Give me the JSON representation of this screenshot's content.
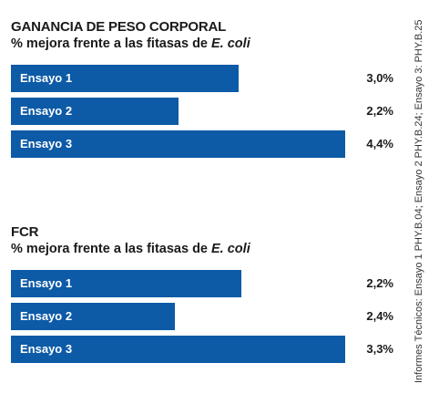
{
  "source_note": "Informes Técnicos: Ensayo 1 PHY.B.04; Ensayo 2 PHY.B.24; Ensayo 3: PHY.B.25",
  "colors": {
    "bar": "#0d5aa7",
    "bar_text": "#ffffff"
  },
  "chart_data": [
    {
      "type": "bar",
      "orientation": "horizontal",
      "title": "GANANCIA DE PESO CORPORAL",
      "subtitle_prefix": "% mejora frente a las fitasas de ",
      "subtitle_em": "E. coli",
      "categories": [
        "Ensayo 1",
        "Ensayo 2",
        "Ensayo 3"
      ],
      "values": [
        3.0,
        2.2,
        4.4
      ],
      "value_labels": [
        "3,0%",
        "2,2%",
        "4,4%"
      ],
      "xlim": [
        0,
        4.4
      ]
    },
    {
      "type": "bar",
      "orientation": "horizontal",
      "title": "FCR",
      "subtitle_prefix": "% mejora frente a las fitasas de ",
      "subtitle_em": "E. coli",
      "categories": [
        "Ensayo 1",
        "Ensayo 2",
        "Ensayo 3"
      ],
      "values": [
        2.2,
        2.4,
        3.3
      ],
      "value_labels": [
        "2,2%",
        "2,4%",
        "3,3%"
      ],
      "bar_fraction": [
        0.69,
        0.49,
        1.0
      ]
    }
  ]
}
